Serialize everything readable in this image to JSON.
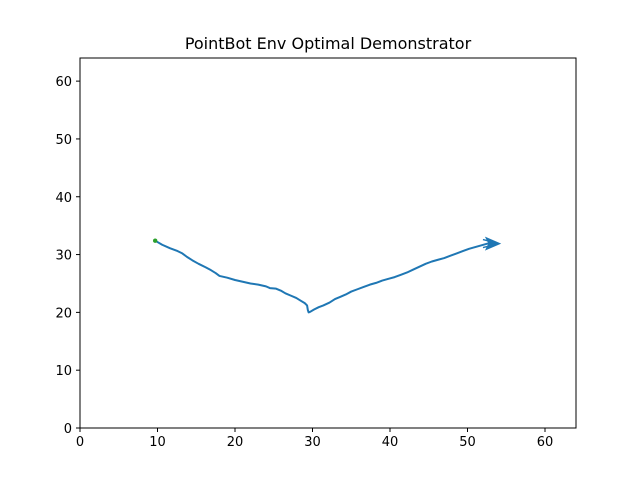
{
  "chart_data": {
    "type": "line",
    "title": "PointBot Env Optimal Demonstrator",
    "xlabel": "",
    "ylabel": "",
    "xlim": [
      0,
      64
    ],
    "ylim": [
      0,
      64
    ],
    "xticks": [
      0,
      10,
      20,
      30,
      40,
      50,
      60
    ],
    "yticks": [
      0,
      10,
      20,
      30,
      40,
      50,
      60
    ],
    "grid": false,
    "colors": {
      "line": "#1f77b4",
      "start_marker": "#2ca02c",
      "axes": "#000000"
    },
    "series": [
      {
        "x": [
          9.7,
          10.6,
          11.6,
          12.6,
          13.2,
          13.8,
          14.5,
          15.3,
          16.2,
          16.9,
          17.5,
          18.0,
          19.0,
          20.0,
          21.0,
          22.0,
          23.0,
          24.0,
          24.5,
          25.3,
          26.0,
          26.5,
          27.2,
          27.9,
          28.5,
          29.0,
          29.3,
          29.4,
          29.5,
          29.7,
          30.2,
          30.8,
          31.4,
          32.2,
          32.9,
          33.6,
          34.3,
          35.0,
          35.8,
          36.6,
          37.4,
          38.2,
          39.0,
          39.8,
          40.6,
          41.4,
          42.2,
          43.0,
          43.8,
          44.6,
          45.4,
          46.2,
          47.0,
          47.8,
          48.6,
          49.4,
          50.2,
          51.0,
          51.8,
          52.6,
          53.2,
          53.5
        ],
        "y": [
          32.4,
          31.7,
          31.1,
          30.6,
          30.2,
          29.6,
          29.0,
          28.4,
          27.8,
          27.3,
          26.8,
          26.3,
          26.0,
          25.6,
          25.3,
          25.0,
          24.8,
          24.5,
          24.2,
          24.1,
          23.7,
          23.3,
          22.9,
          22.5,
          22.0,
          21.6,
          21.2,
          20.4,
          20.0,
          20.1,
          20.5,
          20.9,
          21.2,
          21.7,
          22.3,
          22.7,
          23.1,
          23.6,
          24.0,
          24.4,
          24.8,
          25.1,
          25.5,
          25.8,
          26.1,
          26.5,
          26.9,
          27.4,
          27.9,
          28.4,
          28.8,
          29.1,
          29.4,
          29.8,
          30.2,
          30.6,
          31.0,
          31.3,
          31.6,
          31.9,
          32.0,
          31.9
        ]
      }
    ],
    "start_point": {
      "x": 9.7,
      "y": 32.4
    },
    "end_arrow": {
      "x": 53.8,
      "y": 31.9
    }
  }
}
